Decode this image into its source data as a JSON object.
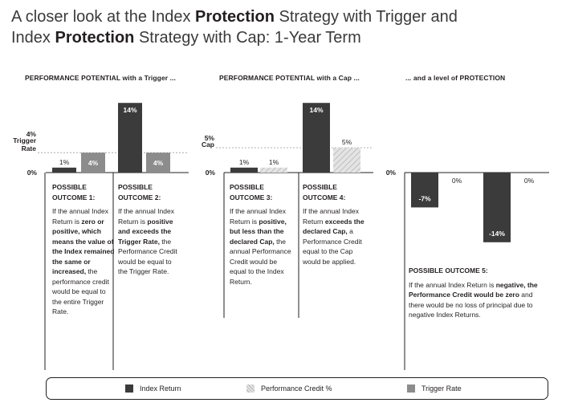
{
  "title": {
    "line1": [
      "A closer look at the Index ",
      "Protection",
      " Strategy with Trigger and"
    ],
    "line2": [
      "Index ",
      "Protection",
      " Strategy with Cap: 1-Year Term"
    ]
  },
  "sections": [
    {
      "heading": "PERFORMANCE POTENTIAL with a Trigger ..."
    },
    {
      "heading": "PERFORMANCE POTENTIAL with a Cap ..."
    },
    {
      "heading": "... and a level of PROTECTION"
    }
  ],
  "colors": {
    "index_return": "#3b3b3c",
    "trigger_rate": "#8c8c8c",
    "performance_credit_fill": "#e4e4e4",
    "performance_credit_hatch": "#b5b5b5",
    "baseline": "#231f20"
  },
  "chart_data": [
    {
      "type": "bar",
      "title": "PERFORMANCE POTENTIAL with a Trigger ...",
      "y_markers": [
        {
          "value": 0,
          "label": "0%"
        },
        {
          "value": 4,
          "label": "4%",
          "sublabel": [
            "Trigger",
            "Rate"
          ]
        }
      ],
      "ylim": [
        0,
        14
      ],
      "groups": [
        {
          "name": "POSSIBLE OUTCOME 1",
          "bars": [
            {
              "series": "Index Return",
              "value": 1,
              "label": "1%"
            },
            {
              "series": "Trigger Rate",
              "value": 4,
              "label": "4%"
            }
          ]
        },
        {
          "name": "POSSIBLE OUTCOME 2",
          "bars": [
            {
              "series": "Index Return",
              "value": 14,
              "label": "14%"
            },
            {
              "series": "Trigger Rate",
              "value": 4,
              "label": "4%"
            }
          ]
        }
      ]
    },
    {
      "type": "bar",
      "title": "PERFORMANCE POTENTIAL with a Cap ...",
      "y_markers": [
        {
          "value": 0,
          "label": "0%"
        },
        {
          "value": 5,
          "label": "5%",
          "sublabel": [
            "Cap"
          ]
        }
      ],
      "ylim": [
        0,
        14
      ],
      "groups": [
        {
          "name": "POSSIBLE OUTCOME 3",
          "bars": [
            {
              "series": "Index Return",
              "value": 1,
              "label": "1%"
            },
            {
              "series": "Performance Credit %",
              "value": 1,
              "label": "1%"
            }
          ]
        },
        {
          "name": "POSSIBLE OUTCOME 4",
          "bars": [
            {
              "series": "Index Return",
              "value": 14,
              "label": "14%"
            },
            {
              "series": "Performance Credit %",
              "value": 5,
              "label": "5%"
            }
          ]
        }
      ]
    },
    {
      "type": "bar",
      "title": "... and a level of PROTECTION",
      "y_markers": [
        {
          "value": 0,
          "label": "0%"
        }
      ],
      "ylim": [
        -14,
        0
      ],
      "groups": [
        {
          "name": "POSSIBLE OUTCOME 5",
          "bars": [
            {
              "series": "Index Return",
              "value": -7,
              "label": "-7%"
            },
            {
              "series": "Performance Credit %",
              "value": 0,
              "label": "0%"
            }
          ]
        },
        {
          "name": "POSSIBLE OUTCOME 5",
          "bars": [
            {
              "series": "Index Return",
              "value": -14,
              "label": "-14%"
            },
            {
              "series": "Performance Credit %",
              "value": 0,
              "label": "0%"
            }
          ]
        }
      ]
    }
  ],
  "outcomes": [
    {
      "head": [
        "POSSIBLE",
        "OUTCOME 1:"
      ],
      "runs": [
        [
          "If the annual Index Return is ",
          false
        ],
        [
          "zero or positive, which means the value of the Index remained the same or increased,",
          true
        ],
        [
          " the performance credit would be equal to the entire Trigger Rate.",
          false
        ]
      ]
    },
    {
      "head": [
        "POSSIBLE",
        "OUTCOME 2:"
      ],
      "runs": [
        [
          "If the annual Index Return is ",
          false
        ],
        [
          "positive and exceeds the Trigger Rate,",
          true
        ],
        [
          " the Performance Credit would be equal to the Trigger Rate.",
          false
        ]
      ]
    },
    {
      "head": [
        "POSSIBLE",
        "OUTCOME 3:"
      ],
      "runs": [
        [
          "If the annual Index Return is ",
          false
        ],
        [
          "positive, but less than the declared Cap,",
          true
        ],
        [
          " the annual Performance Credit would be equal to the Index Return.",
          false
        ]
      ]
    },
    {
      "head": [
        "POSSIBLE",
        "OUTCOME 4:"
      ],
      "runs": [
        [
          "If the annual Index Return ",
          false
        ],
        [
          "exceeds the declared Cap,",
          true
        ],
        [
          " a Performance Credit equal to the Cap would be applied.",
          false
        ]
      ]
    },
    {
      "head": [
        "POSSIBLE OUTCOME 5:"
      ],
      "runs": [
        [
          "If the annual Index Return is ",
          false
        ],
        [
          "negative, the Performance Credit would be zero",
          true
        ],
        [
          " and there would be no loss of principal due to negative Index Returns.",
          false
        ]
      ]
    }
  ],
  "legend": [
    {
      "label": "Index Return",
      "swatch": "solid-dark"
    },
    {
      "label": "Performance Credit %",
      "swatch": "hatched"
    },
    {
      "label": "Trigger Rate",
      "swatch": "solid-gray"
    }
  ]
}
